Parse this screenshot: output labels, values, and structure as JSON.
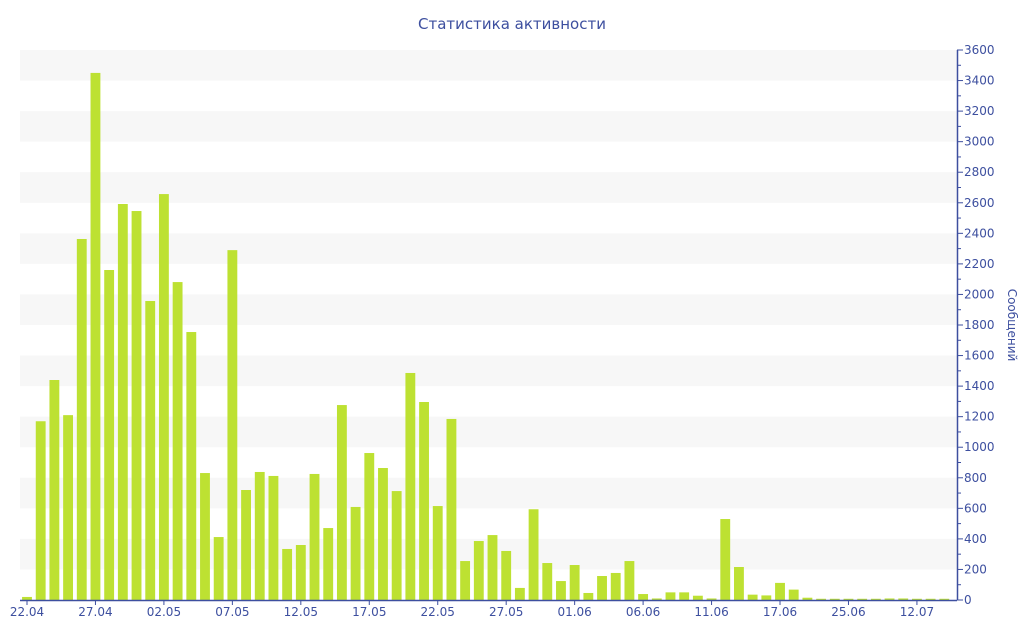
{
  "chart_data": {
    "type": "bar",
    "title": "Статистика активности",
    "ylabel": "Сообщений",
    "xlabel": "",
    "ylim": [
      0,
      3600
    ],
    "y_ticks": [
      0,
      200,
      400,
      600,
      800,
      1000,
      1200,
      1400,
      1600,
      1800,
      2000,
      2200,
      2400,
      2600,
      2800,
      3000,
      3200,
      3400,
      3600
    ],
    "y_axis_position": "right",
    "grid": "alternating horizontal bands",
    "x_tick_labels": [
      "22.04",
      "27.04",
      "02.05",
      "07.05",
      "12.05",
      "17.05",
      "22.05",
      "27.05",
      "01.06",
      "06.06",
      "11.06",
      "17.06",
      "25.06",
      "12.07"
    ],
    "x_tick_every_n_bars": 5,
    "values": [
      20,
      1170,
      1440,
      1210,
      2363,
      3450,
      2160,
      2592,
      2546,
      1957,
      2657,
      2081,
      1754,
      831,
      412,
      2290,
      720,
      838,
      812,
      334,
      360,
      825,
      471,
      1276,
      609,
      962,
      864,
      713,
      1486,
      1296,
      615,
      1185,
      255,
      386,
      425,
      321,
      79,
      594,
      242,
      124,
      229,
      46,
      157,
      177,
      255,
      39,
      10,
      50,
      50,
      28,
      10,
      530,
      216,
      35,
      30,
      112,
      68,
      15,
      8,
      8,
      8,
      8,
      8,
      10,
      10,
      8,
      8,
      8
    ],
    "colors": {
      "bar": "#bde132",
      "axis": "#3d4f9f",
      "band": "#f7f7f7"
    }
  }
}
